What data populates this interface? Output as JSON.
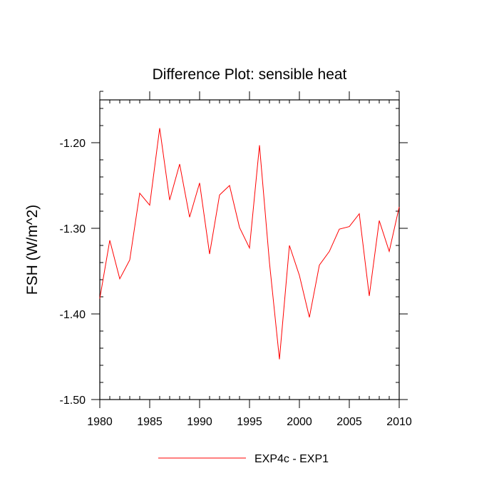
{
  "chart_data": {
    "type": "line",
    "title": "Difference Plot: sensible heat",
    "xlabel": "",
    "ylabel": "FSH  (W/m^2)",
    "xlim": [
      1980,
      2010
    ],
    "ylim": [
      -1.5,
      -1.15
    ],
    "xticks": [
      1980,
      1985,
      1990,
      1995,
      2000,
      2005,
      2010
    ],
    "xtick_labels": [
      "1980",
      "1985",
      "1990",
      "1995",
      "2000",
      "2005",
      "2010"
    ],
    "yticks": [
      -1.2,
      -1.3,
      -1.4,
      -1.5
    ],
    "ytick_labels": [
      "-1.20",
      "-1.30",
      "-1.40",
      "-1.50"
    ],
    "grid": false,
    "legend_position": "bottom-center",
    "series": [
      {
        "name": "EXP4c - EXP1",
        "color": "#ff0000",
        "x": [
          1980,
          1981,
          1982,
          1983,
          1984,
          1985,
          1986,
          1987,
          1988,
          1989,
          1990,
          1991,
          1992,
          1993,
          1994,
          1995,
          1996,
          1997,
          1998,
          1999,
          2000,
          2001,
          2002,
          2003,
          2004,
          2005,
          2006,
          2007,
          2008,
          2009,
          2010
        ],
        "values": [
          -1.382,
          -1.314,
          -1.359,
          -1.337,
          -1.259,
          -1.273,
          -1.183,
          -1.267,
          -1.225,
          -1.287,
          -1.247,
          -1.33,
          -1.261,
          -1.25,
          -1.299,
          -1.323,
          -1.203,
          -1.34,
          -1.453,
          -1.32,
          -1.355,
          -1.404,
          -1.343,
          -1.327,
          -1.301,
          -1.298,
          -1.283,
          -1.379,
          -1.291,
          -1.327,
          -1.275
        ]
      }
    ]
  }
}
